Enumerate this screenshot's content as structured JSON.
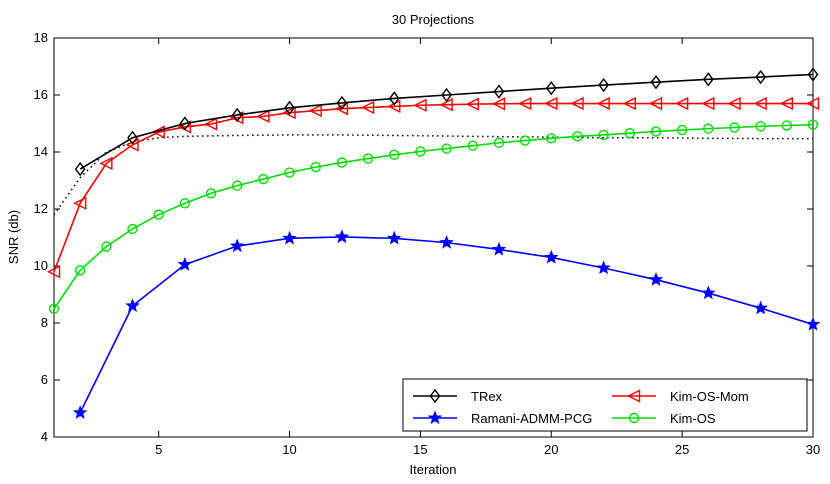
{
  "chart_data": {
    "type": "line",
    "title": "30 Projections",
    "xlabel": "Iteration",
    "ylabel": "SNR (db)",
    "xlim": [
      1,
      30
    ],
    "ylim": [
      4,
      18
    ],
    "xticks": [
      5,
      10,
      15,
      20,
      25,
      30
    ],
    "yticks": [
      4,
      6,
      8,
      10,
      12,
      14,
      16,
      18
    ],
    "grid": false,
    "legend_position": "bottom-right",
    "series": [
      {
        "name": "TRex",
        "color": "#000000",
        "marker": "diamond",
        "line": "solid",
        "x": [
          2,
          4,
          6,
          8,
          10,
          12,
          14,
          16,
          18,
          20,
          22,
          24,
          26,
          28,
          30
        ],
        "y": [
          13.4,
          14.5,
          15.0,
          15.3,
          15.55,
          15.72,
          15.88,
          16.0,
          16.12,
          16.24,
          16.35,
          16.45,
          16.55,
          16.63,
          16.72
        ]
      },
      {
        "name": "Ramani-ADMM-PCG",
        "color": "#0000ff",
        "marker": "star",
        "line": "solid",
        "x": [
          2,
          4,
          6,
          8,
          10,
          12,
          14,
          16,
          18,
          20,
          22,
          24,
          26,
          28,
          30
        ],
        "y": [
          4.85,
          8.6,
          10.05,
          10.7,
          10.97,
          11.02,
          10.97,
          10.82,
          10.58,
          10.3,
          9.93,
          9.52,
          9.05,
          8.52,
          7.95
        ]
      },
      {
        "name": "Kim-OS-Mom",
        "color": "#ff0000",
        "marker": "triangle-left",
        "line": "solid",
        "x": [
          1,
          2,
          3,
          4,
          5,
          6,
          7,
          8,
          9,
          10,
          11,
          12,
          13,
          14,
          15,
          16,
          17,
          18,
          19,
          20,
          21,
          22,
          23,
          24,
          25,
          26,
          27,
          28,
          29,
          30
        ],
        "y": [
          9.8,
          12.2,
          13.6,
          14.25,
          14.7,
          14.88,
          14.98,
          15.2,
          15.25,
          15.38,
          15.45,
          15.52,
          15.56,
          15.6,
          15.64,
          15.66,
          15.68,
          15.69,
          15.7,
          15.7,
          15.7,
          15.7,
          15.7,
          15.7,
          15.7,
          15.7,
          15.7,
          15.7,
          15.7,
          15.7
        ]
      },
      {
        "name": "Kim-OS",
        "color": "#00e000",
        "marker": "circle",
        "line": "solid",
        "x": [
          1,
          2,
          3,
          4,
          5,
          6,
          7,
          8,
          9,
          10,
          11,
          12,
          13,
          14,
          15,
          16,
          17,
          18,
          19,
          20,
          21,
          22,
          23,
          24,
          25,
          26,
          27,
          28,
          29,
          30
        ],
        "y": [
          8.5,
          9.85,
          10.68,
          11.3,
          11.8,
          12.2,
          12.55,
          12.82,
          13.05,
          13.28,
          13.47,
          13.63,
          13.77,
          13.9,
          14.02,
          14.12,
          14.22,
          14.32,
          14.4,
          14.48,
          14.55,
          14.6,
          14.66,
          14.72,
          14.77,
          14.82,
          14.86,
          14.9,
          14.93,
          14.96
        ]
      },
      {
        "name": "",
        "color": "#000000",
        "marker": "none",
        "line": "dotted",
        "legend": false,
        "x": [
          1,
          2,
          3,
          4,
          5,
          6,
          8,
          10,
          12,
          14,
          16,
          18,
          20,
          22,
          24,
          26,
          28,
          30
        ],
        "y": [
          11.8,
          13.1,
          14.0,
          14.35,
          14.5,
          14.55,
          14.58,
          14.6,
          14.6,
          14.58,
          14.56,
          14.54,
          14.52,
          14.5,
          14.5,
          14.48,
          14.47,
          14.47
        ]
      }
    ]
  }
}
